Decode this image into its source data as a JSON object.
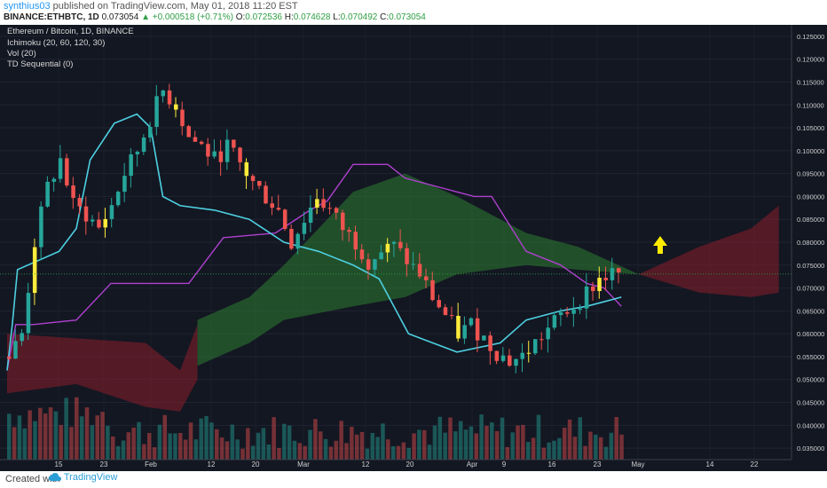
{
  "header": {
    "publisher": "synthius03",
    "published_text": "published on TradingView.com, May 01, 2018 11:20 EST",
    "symbol": "BINANCE:ETHBTC, 1D",
    "last": "0.073054",
    "change": "+0.000518 (+0.71%)",
    "open_label": "O:",
    "open": "0.072536",
    "high_label": "H:",
    "high": "0.074628",
    "low_label": "L:",
    "low": "0.070492",
    "close_label": "C:",
    "close": "0.073054"
  },
  "legend": {
    "title": "Ethereum / Bitcoin, 1D, BINANCE",
    "ichimoku": "Ichimoku (20, 60, 120, 30)",
    "vol": "Vol (20)",
    "td": "TD Sequential (0)"
  },
  "footer": {
    "created_with": "Created with",
    "brand": "TradingView"
  },
  "colors": {
    "background": "#131722",
    "bull": "#26a69a",
    "bear": "#ef5350",
    "conversion": "#4dd0e1",
    "base": "#b040d0",
    "lagging": "#6b7a5a",
    "cloud_bull": "#2e7d32",
    "cloud_bear": "#8b1e2a",
    "arrow": "#ffeb00",
    "price_label": "#2e9f44"
  },
  "chart_data": {
    "type": "candlestick",
    "title": "Ethereum / Bitcoin, 1D, BINANCE",
    "x_ticks": [
      "15",
      "23",
      "Feb",
      "12",
      "20",
      "Mar",
      "12",
      "20",
      "Apr",
      "9",
      "16",
      "23",
      "May",
      "14",
      "22"
    ],
    "y_ticks": [
      "0.125000",
      "0.120000",
      "0.115000",
      "0.110000",
      "0.105000",
      "0.100000",
      "0.095000",
      "0.090000",
      "0.085000",
      "0.080000",
      "0.075000",
      "0.070000",
      "0.065000",
      "0.060000",
      "0.055000",
      "0.050000",
      "0.045000",
      "0.040000",
      "0.035000"
    ],
    "ylim": [
      0.0325,
      0.1275
    ],
    "last_price_label": "0.073054",
    "last_price": 0.073054,
    "close_path": [
      0.055,
      0.06,
      0.08,
      0.092,
      0.098,
      0.088,
      0.086,
      0.083,
      0.088,
      0.095,
      0.1,
      0.107,
      0.113,
      0.11,
      0.103,
      0.101,
      0.098,
      0.101,
      0.097,
      0.093,
      0.09,
      0.087,
      0.08,
      0.085,
      0.09,
      0.087,
      0.083,
      0.08,
      0.076,
      0.078,
      0.079,
      0.076,
      0.073,
      0.068,
      0.064,
      0.06,
      0.062,
      0.059,
      0.056,
      0.054,
      0.055,
      0.058,
      0.061,
      0.064,
      0.066,
      0.069,
      0.072,
      0.073
    ],
    "conversion_line": [
      [
        0,
        0.052
      ],
      [
        3,
        0.062
      ],
      [
        6,
        0.074
      ],
      [
        30,
        0.078
      ],
      [
        40,
        0.083
      ],
      [
        48,
        0.098
      ],
      [
        62,
        0.106
      ],
      [
        75,
        0.108
      ],
      [
        83,
        0.105
      ],
      [
        90,
        0.09
      ],
      [
        100,
        0.088
      ],
      [
        120,
        0.087
      ],
      [
        140,
        0.085
      ],
      [
        160,
        0.08
      ],
      [
        180,
        0.078
      ],
      [
        200,
        0.075
      ],
      [
        215,
        0.072
      ],
      [
        232,
        0.06
      ],
      [
        260,
        0.056
      ],
      [
        285,
        0.058
      ],
      [
        300,
        0.063
      ],
      [
        320,
        0.065
      ],
      [
        335,
        0.066
      ],
      [
        345,
        0.067
      ],
      [
        355,
        0.068
      ]
    ],
    "base_line": [
      [
        0,
        0.052
      ],
      [
        5,
        0.062
      ],
      [
        15,
        0.062
      ],
      [
        40,
        0.063
      ],
      [
        60,
        0.071
      ],
      [
        105,
        0.071
      ],
      [
        125,
        0.081
      ],
      [
        155,
        0.082
      ],
      [
        175,
        0.087
      ],
      [
        185,
        0.089
      ],
      [
        200,
        0.097
      ],
      [
        220,
        0.097
      ],
      [
        230,
        0.094
      ],
      [
        260,
        0.091
      ],
      [
        270,
        0.09
      ],
      [
        280,
        0.09
      ],
      [
        300,
        0.078
      ],
      [
        320,
        0.075
      ],
      [
        335,
        0.071
      ],
      [
        345,
        0.07
      ],
      [
        355,
        0.066
      ]
    ],
    "cloud": {
      "bear_span": [
        [
          0,
          0.06,
          0.047
        ],
        [
          40,
          0.059,
          0.049
        ],
        [
          80,
          0.058,
          0.044
        ],
        [
          100,
          0.052,
          0.043
        ],
        [
          110,
          0.062,
          0.05
        ]
      ],
      "bull_span": [
        [
          110,
          0.063,
          0.053
        ],
        [
          140,
          0.068,
          0.058
        ],
        [
          160,
          0.075,
          0.063
        ],
        [
          200,
          0.091,
          0.066
        ],
        [
          230,
          0.095,
          0.068
        ],
        [
          260,
          0.09,
          0.073
        ],
        [
          300,
          0.082,
          0.075
        ],
        [
          330,
          0.079,
          0.074
        ],
        [
          365,
          0.073,
          0.073
        ]
      ],
      "future_bear": [
        [
          365,
          0.073,
          0.073
        ],
        [
          400,
          0.079,
          0.069
        ],
        [
          430,
          0.083,
          0.068
        ],
        [
          446,
          0.088,
          0.069
        ]
      ]
    },
    "volume": "Vol (20)",
    "annotation": "up-arrow"
  }
}
